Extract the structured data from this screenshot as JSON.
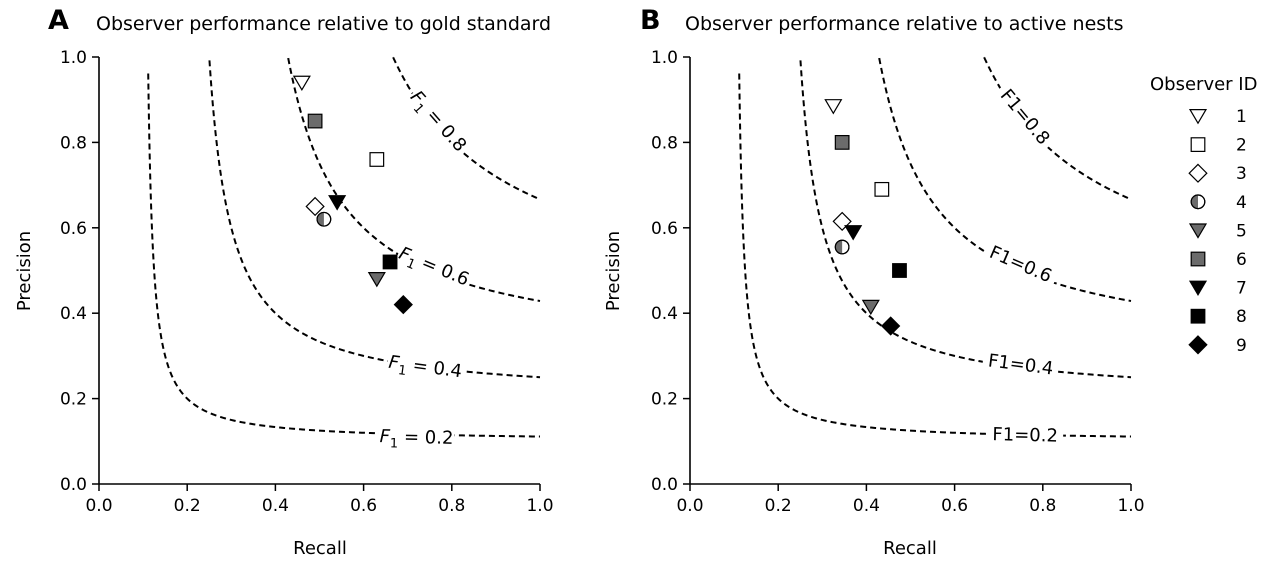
{
  "colors": {
    "marker_grey": "#6b6b6b",
    "marker_black": "#000000",
    "marker_white": "#ffffff",
    "curve": "#000000"
  },
  "legend": {
    "title": "Observer ID",
    "entries": [
      {
        "label": "1",
        "marker": "triangle-down",
        "fill": "white"
      },
      {
        "label": "2",
        "marker": "square",
        "fill": "white"
      },
      {
        "label": "3",
        "marker": "diamond",
        "fill": "white"
      },
      {
        "label": "4",
        "marker": "circle",
        "fill": "half"
      },
      {
        "label": "5",
        "marker": "triangle-down",
        "fill": "grey"
      },
      {
        "label": "6",
        "marker": "square",
        "fill": "grey"
      },
      {
        "label": "7",
        "marker": "triangle-down",
        "fill": "black"
      },
      {
        "label": "8",
        "marker": "square",
        "fill": "black"
      },
      {
        "label": "9",
        "marker": "diamond",
        "fill": "black"
      }
    ]
  },
  "chart_data": [
    {
      "type": "scatter",
      "panel": "A",
      "title": "Observer performance relative to gold standard",
      "xlabel": "Recall",
      "ylabel": "Precision",
      "xlim": [
        0.0,
        1.0
      ],
      "ylim": [
        0.0,
        1.0
      ],
      "xticks": [
        "0.0",
        "0.2",
        "0.4",
        "0.6",
        "0.8",
        "1.0"
      ],
      "yticks": [
        "0.0",
        "0.2",
        "0.4",
        "0.6",
        "0.8",
        "1.0"
      ],
      "f1_contours": [
        {
          "f1": 0.2,
          "label_prefix": "F",
          "label_sub": "1",
          "label_suffix": " = 0.2",
          "label_at": {
            "x": 0.72,
            "y": 0.11
          }
        },
        {
          "f1": 0.4,
          "label_prefix": "F",
          "label_sub": "1",
          "label_suffix": " = 0.4",
          "label_at": {
            "x": 0.74,
            "y": 0.275
          }
        },
        {
          "f1": 0.6,
          "label_prefix": "F",
          "label_sub": "1",
          "label_suffix": " = 0.6",
          "label_at": {
            "x": 0.76,
            "y": 0.51
          }
        },
        {
          "f1": 0.8,
          "label_prefix": "F",
          "label_sub": "1",
          "label_suffix": " = 0.8",
          "label_at": {
            "x": 0.77,
            "y": 0.85
          }
        }
      ],
      "points": [
        {
          "observer": "1",
          "x": 0.46,
          "y": 0.94
        },
        {
          "observer": "2",
          "x": 0.63,
          "y": 0.76
        },
        {
          "observer": "3",
          "x": 0.49,
          "y": 0.65
        },
        {
          "observer": "4",
          "x": 0.51,
          "y": 0.62
        },
        {
          "observer": "5",
          "x": 0.63,
          "y": 0.48
        },
        {
          "observer": "6",
          "x": 0.49,
          "y": 0.85
        },
        {
          "observer": "7",
          "x": 0.54,
          "y": 0.66
        },
        {
          "observer": "8",
          "x": 0.66,
          "y": 0.52
        },
        {
          "observer": "9",
          "x": 0.69,
          "y": 0.42
        }
      ]
    },
    {
      "type": "scatter",
      "panel": "B",
      "title": "Observer performance relative to active nests",
      "xlabel": "Recall",
      "ylabel": "Precision",
      "xlim": [
        0.0,
        1.0
      ],
      "ylim": [
        0.0,
        1.0
      ],
      "xticks": [
        "0.0",
        "0.2",
        "0.4",
        "0.6",
        "0.8",
        "1.0"
      ],
      "yticks": [
        "0.0",
        "0.2",
        "0.4",
        "0.6",
        "0.8",
        "1.0"
      ],
      "f1_contours": [
        {
          "f1": 0.2,
          "label_prefix": "F1",
          "label_sub": "",
          "label_suffix": "=0.2",
          "label_at": {
            "x": 0.76,
            "y": 0.115
          }
        },
        {
          "f1": 0.4,
          "label_prefix": "F1",
          "label_sub": "",
          "label_suffix": "=0.4",
          "label_at": {
            "x": 0.75,
            "y": 0.28
          }
        },
        {
          "f1": 0.6,
          "label_prefix": "F1",
          "label_sub": "",
          "label_suffix": "=0.6",
          "label_at": {
            "x": 0.75,
            "y": 0.515
          }
        },
        {
          "f1": 0.8,
          "label_prefix": "F1",
          "label_sub": "",
          "label_suffix": "=0.8",
          "label_at": {
            "x": 0.76,
            "y": 0.86
          }
        }
      ],
      "points": [
        {
          "observer": "1",
          "x": 0.325,
          "y": 0.885
        },
        {
          "observer": "2",
          "x": 0.435,
          "y": 0.69
        },
        {
          "observer": "3",
          "x": 0.345,
          "y": 0.615
        },
        {
          "observer": "4",
          "x": 0.345,
          "y": 0.555
        },
        {
          "observer": "5",
          "x": 0.41,
          "y": 0.415
        },
        {
          "observer": "6",
          "x": 0.345,
          "y": 0.8
        },
        {
          "observer": "7",
          "x": 0.37,
          "y": 0.59
        },
        {
          "observer": "8",
          "x": 0.475,
          "y": 0.5
        },
        {
          "observer": "9",
          "x": 0.455,
          "y": 0.37
        }
      ]
    }
  ]
}
